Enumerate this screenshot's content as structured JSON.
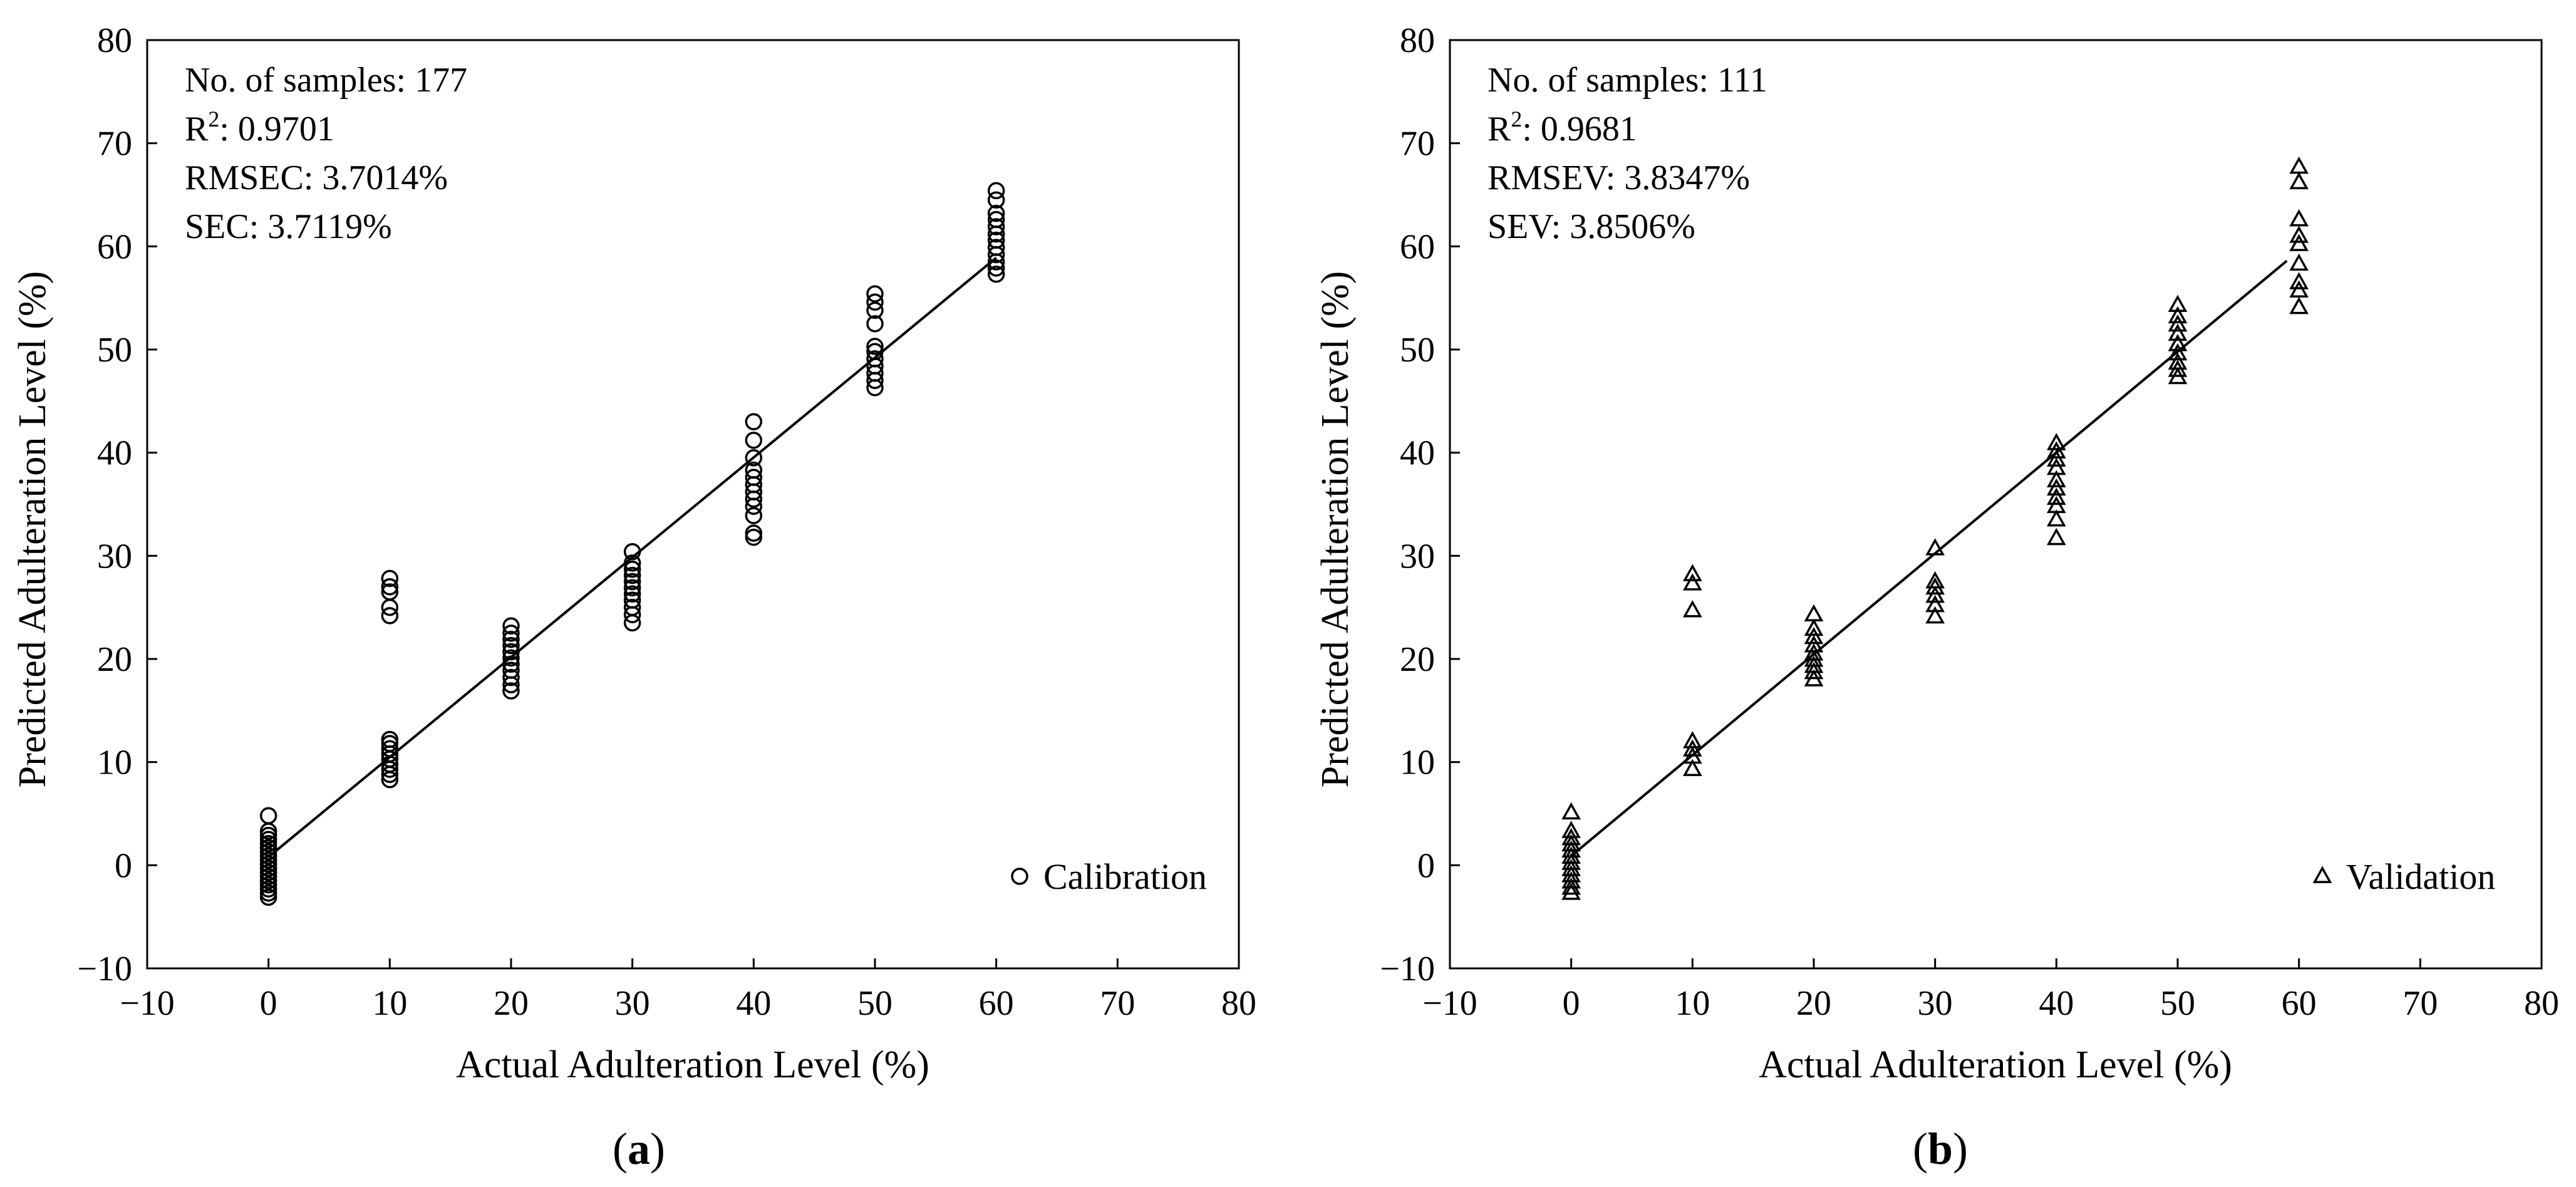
{
  "chart_data": [
    {
      "type": "scatter",
      "panel_label": "a",
      "xlabel": "Actual Adulteration Level (%)",
      "ylabel": "Predicted Adulteration Level (%)",
      "xlim": [
        -10,
        80
      ],
      "ylim": [
        -10,
        80
      ],
      "xticks": [
        "−10",
        "0",
        "10",
        "20",
        "30",
        "40",
        "50",
        "60",
        "70",
        "80"
      ],
      "yticks": [
        "−10",
        "0",
        "10",
        "20",
        "30",
        "40",
        "50",
        "60",
        "70",
        "80"
      ],
      "grid": false,
      "legend_position": "bottom-right",
      "stats": {
        "samples_label": "No. of samples: 177",
        "r2_prefix": "R",
        "r2_sup": "2",
        "r2_value": ": 0.9701",
        "rmse": "RMSEC: 3.7014%",
        "se": "SEC: 3.7119%"
      },
      "fit_line": {
        "x": [
          0,
          60
        ],
        "y": [
          0.8,
          58.9
        ]
      },
      "series": [
        {
          "name": "Calibration",
          "marker": "circle",
          "points": [
            [
              0,
              -3.1
            ],
            [
              0,
              -2.7
            ],
            [
              0,
              -2.3
            ],
            [
              0,
              -1.9
            ],
            [
              0,
              -1.5
            ],
            [
              0,
              -1.1
            ],
            [
              0,
              -0.7
            ],
            [
              0,
              -0.3
            ],
            [
              0,
              0.1
            ],
            [
              0,
              0.5
            ],
            [
              0,
              0.9
            ],
            [
              0,
              1.3
            ],
            [
              0,
              1.7
            ],
            [
              0,
              2.1
            ],
            [
              0,
              2.5
            ],
            [
              0,
              2.9
            ],
            [
              0,
              3.3
            ],
            [
              0,
              4.8
            ],
            [
              10,
              8.3
            ],
            [
              10,
              8.8
            ],
            [
              10,
              9.3
            ],
            [
              10,
              9.8
            ],
            [
              10,
              10.3
            ],
            [
              10,
              10.8
            ],
            [
              10,
              11.3
            ],
            [
              10,
              11.8
            ],
            [
              10,
              12.2
            ],
            [
              10,
              24.2
            ],
            [
              10,
              25.0
            ],
            [
              10,
              26.5
            ],
            [
              10,
              27.0
            ],
            [
              10,
              27.8
            ],
            [
              20,
              16.9
            ],
            [
              20,
              17.5
            ],
            [
              20,
              18.2
            ],
            [
              20,
              18.9
            ],
            [
              20,
              19.5
            ],
            [
              20,
              20.1
            ],
            [
              20,
              20.7
            ],
            [
              20,
              21.3
            ],
            [
              20,
              21.9
            ],
            [
              20,
              22.5
            ],
            [
              20,
              23.2
            ],
            [
              30,
              23.5
            ],
            [
              30,
              24.3
            ],
            [
              30,
              25.0
            ],
            [
              30,
              25.7
            ],
            [
              30,
              26.3
            ],
            [
              30,
              26.9
            ],
            [
              30,
              27.5
            ],
            [
              30,
              28.1
            ],
            [
              30,
              28.7
            ],
            [
              30,
              29.3
            ],
            [
              30,
              30.4
            ],
            [
              40,
              31.8
            ],
            [
              40,
              32.2
            ],
            [
              40,
              33.9
            ],
            [
              40,
              34.8
            ],
            [
              40,
              35.5
            ],
            [
              40,
              36.2
            ],
            [
              40,
              36.9
            ],
            [
              40,
              37.6
            ],
            [
              40,
              38.3
            ],
            [
              40,
              39.5
            ],
            [
              40,
              41.2
            ],
            [
              40,
              43.0
            ],
            [
              50,
              46.3
            ],
            [
              50,
              47.0
            ],
            [
              50,
              47.7
            ],
            [
              50,
              48.4
            ],
            [
              50,
              49.1
            ],
            [
              50,
              49.8
            ],
            [
              50,
              50.3
            ],
            [
              50,
              52.5
            ],
            [
              50,
              53.8
            ],
            [
              50,
              54.6
            ],
            [
              50,
              55.4
            ],
            [
              60,
              57.3
            ],
            [
              60,
              57.9
            ],
            [
              60,
              58.5
            ],
            [
              60,
              59.2
            ],
            [
              60,
              59.9
            ],
            [
              60,
              60.6
            ],
            [
              60,
              61.2
            ],
            [
              60,
              61.9
            ],
            [
              60,
              62.6
            ],
            [
              60,
              63.2
            ],
            [
              60,
              64.5
            ],
            [
              60,
              65.4
            ]
          ]
        }
      ]
    },
    {
      "type": "scatter",
      "panel_label": "b",
      "xlabel": "Actual Adulteration Level (%)",
      "ylabel": "Predicted Adulteration Level (%)",
      "xlim": [
        -10,
        80
      ],
      "ylim": [
        -10,
        80
      ],
      "xticks": [
        "−10",
        "0",
        "10",
        "20",
        "30",
        "40",
        "50",
        "60",
        "70",
        "80"
      ],
      "yticks": [
        "−10",
        "0",
        "10",
        "20",
        "30",
        "40",
        "50",
        "60",
        "70",
        "80"
      ],
      "grid": false,
      "legend_position": "bottom-right",
      "stats": {
        "samples_label": "No. of samples: 111",
        "r2_prefix": "R",
        "r2_sup": "2",
        "r2_value": ": 0.9681",
        "rmse": "RMSEV: 3.8347%",
        "se": "SEV: 3.8506%"
      },
      "fit_line": {
        "x": [
          0,
          59
        ],
        "y": [
          0.9,
          58.6
        ]
      },
      "series": [
        {
          "name": "Validation",
          "marker": "triangle",
          "points": [
            [
              0,
              -2.7
            ],
            [
              0,
              -2.2
            ],
            [
              0,
              -1.6
            ],
            [
              0,
              -1.0
            ],
            [
              0,
              -0.4
            ],
            [
              0,
              0.2
            ],
            [
              0,
              0.8
            ],
            [
              0,
              1.4
            ],
            [
              0,
              2.0
            ],
            [
              0,
              2.6
            ],
            [
              0,
              3.3
            ],
            [
              0,
              5.1
            ],
            [
              10,
              9.3
            ],
            [
              10,
              10.5
            ],
            [
              10,
              11.2
            ],
            [
              10,
              12.0
            ],
            [
              10,
              24.7
            ],
            [
              10,
              27.3
            ],
            [
              10,
              28.2
            ],
            [
              20,
              18.0
            ],
            [
              20,
              18.7
            ],
            [
              20,
              19.3
            ],
            [
              20,
              19.9
            ],
            [
              20,
              20.5
            ],
            [
              20,
              21.3
            ],
            [
              20,
              22.1
            ],
            [
              20,
              22.9
            ],
            [
              20,
              24.3
            ],
            [
              30,
              24.1
            ],
            [
              30,
              25.2
            ],
            [
              30,
              26.1
            ],
            [
              30,
              26.9
            ],
            [
              30,
              27.5
            ],
            [
              30,
              30.7
            ],
            [
              40,
              31.7
            ],
            [
              40,
              33.5
            ],
            [
              40,
              34.8
            ],
            [
              40,
              35.6
            ],
            [
              40,
              36.5
            ],
            [
              40,
              37.3
            ],
            [
              40,
              38.5
            ],
            [
              40,
              39.3
            ],
            [
              40,
              40.1
            ],
            [
              40,
              40.9
            ],
            [
              50,
              47.3
            ],
            [
              50,
              48.0
            ],
            [
              50,
              48.7
            ],
            [
              50,
              49.6
            ],
            [
              50,
              50.5
            ],
            [
              50,
              51.5
            ],
            [
              50,
              52.4
            ],
            [
              50,
              53.2
            ],
            [
              50,
              54.3
            ],
            [
              60,
              54.1
            ],
            [
              60,
              55.7
            ],
            [
              60,
              56.5
            ],
            [
              60,
              58.3
            ],
            [
              60,
              60.2
            ],
            [
              60,
              61.0
            ],
            [
              60,
              62.6
            ],
            [
              60,
              66.2
            ],
            [
              60,
              67.7
            ]
          ]
        }
      ]
    }
  ]
}
